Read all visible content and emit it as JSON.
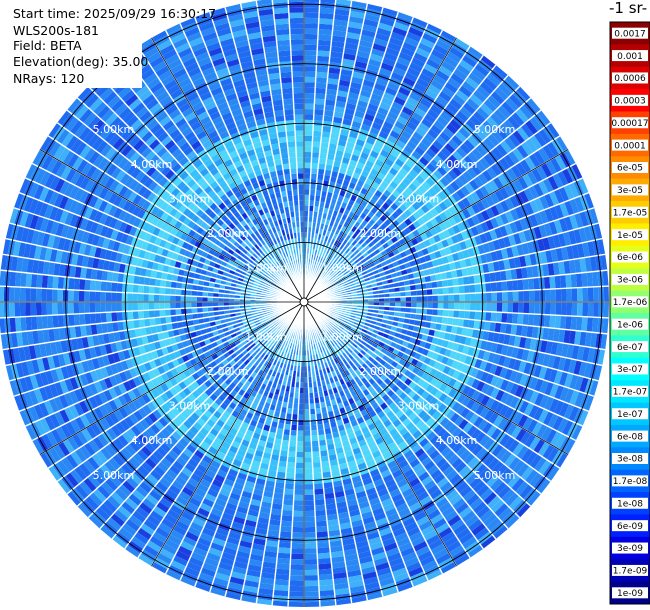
{
  "header": {
    "start_time": "Start time: 2025/09/29 16:30:17",
    "instrument": "WLS200s-181",
    "field": "Field: BETA",
    "elevation": "Elevation(deg): 35.00",
    "nrays": "NRays: 120"
  },
  "colorbar": {
    "title_fragment": "-1 sr-",
    "tick_labels": [
      "0.0017",
      "0.001",
      "0.0006",
      "0.0003",
      "0.00017",
      "0.0001",
      "6e-05",
      "3e-05",
      "1.7e-05",
      "1e-05",
      "6e-06",
      "3e-06",
      "1.7e-06",
      "1e-06",
      "6e-07",
      "3e-07",
      "1.7e-07",
      "1e-07",
      "6e-08",
      "3e-08",
      "1.7e-08",
      "1e-08",
      "6e-09",
      "3e-09",
      "1.7e-09",
      "1e-09"
    ],
    "colors": [
      "#8b0000",
      "#b40000",
      "#dc0000",
      "#ff0000",
      "#ff4000",
      "#ff6a00",
      "#ff8c00",
      "#ffaa00",
      "#ffcc00",
      "#ffee00",
      "#e6ff1a",
      "#c0ff40",
      "#90ff70",
      "#60ffa0",
      "#30ffd0",
      "#00ffff",
      "#00e8ff",
      "#00c8ff",
      "#00a8ff",
      "#0088ff",
      "#0064ff",
      "#0040ff",
      "#0020ff",
      "#0000e0",
      "#0000b4",
      "#00008b"
    ]
  },
  "chart_data": {
    "type": "heatmap",
    "projection": "polar PPI (plan position indicator)",
    "field": "BETA",
    "elevation_deg": 35.0,
    "n_rays": 120,
    "max_range_km": 5.0,
    "range_ring_labels": [
      "1.00km",
      "2.00km",
      "3.00km",
      "4.00km",
      "5.00km"
    ],
    "color_scale": "log",
    "value_range": [
      1e-09,
      0.0017
    ],
    "dominant_value_bands": [
      {
        "range_km": [
          0,
          1.0
        ],
        "typical_beta": "1.7e-07 to 6e-08"
      },
      {
        "range_km": [
          1.0,
          2.2
        ],
        "typical_beta": "6e-08 to 3e-08, patches down to 1e-08"
      },
      {
        "range_km": [
          2.2,
          3.0
        ],
        "typical_beta": "1.7e-07 to 1e-07"
      },
      {
        "range_km": [
          3.0,
          5.1
        ],
        "typical_beta": "3e-08 to 1.7e-08"
      }
    ]
  }
}
